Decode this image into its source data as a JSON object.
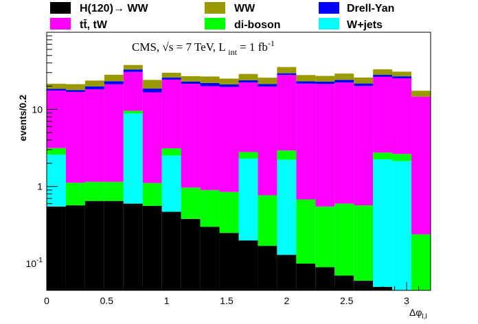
{
  "chart_data": {
    "type": "bar",
    "stacked": true,
    "y_scale": "log",
    "ylabel": "events/0.2",
    "xlabel": "Δφ",
    "xlabel_sub": "l,l",
    "xlim": [
      0,
      3.2
    ],
    "ylim": [
      0.045,
      100
    ],
    "x_ticks": [
      {
        "v": 0,
        "label": "0"
      },
      {
        "v": 0.5,
        "label": "0.5"
      },
      {
        "v": 1,
        "label": "1"
      },
      {
        "v": 1.5,
        "label": "1.5"
      },
      {
        "v": 2,
        "label": "2"
      },
      {
        "v": 2.5,
        "label": "2.5"
      },
      {
        "v": 3,
        "label": "3"
      }
    ],
    "y_ticks": [
      {
        "v": 0.1,
        "label": "10",
        "sup": "-1"
      },
      {
        "v": 1,
        "label": "1",
        "sup": ""
      },
      {
        "v": 10,
        "label": "10",
        "sup": ""
      }
    ],
    "annotation": {
      "pre": "CMS, ",
      "sqrt": "√s",
      "mid": " = 7 TeV, L ",
      "sub": "int",
      "post": " = 1 fb",
      "sup": "-1"
    },
    "bin_edges": [
      0,
      0.16,
      0.32,
      0.48,
      0.64,
      0.8,
      0.96,
      1.12,
      1.28,
      1.44,
      1.6,
      1.76,
      1.92,
      2.08,
      2.24,
      2.4,
      2.56,
      2.72,
      2.88,
      3.04,
      3.2
    ],
    "series": [
      {
        "name": "H(120)→ WW",
        "legend_label": "H(120)",
        "legend_arrow": "→",
        "legend_suffix": " WW",
        "color": "#000000",
        "values": [
          0.55,
          0.57,
          0.65,
          0.65,
          0.6,
          0.56,
          0.47,
          0.38,
          0.3,
          0.25,
          0.2,
          0.17,
          0.13,
          0.1,
          0.09,
          0.07,
          0.06,
          0.05,
          0.04,
          0.04
        ]
      },
      {
        "name": "W+jets",
        "color": "#00ffff",
        "values": [
          2.05,
          0,
          0,
          0,
          8.3,
          0,
          2.05,
          0,
          0,
          0,
          2.1,
          0,
          2.1,
          0,
          0,
          0,
          0,
          2.2,
          2.1,
          0
        ]
      },
      {
        "name": "di-boson",
        "color": "#00ff00",
        "values": [
          0.55,
          0.55,
          0.5,
          0.5,
          0.7,
          0.55,
          0.6,
          0.59,
          0.6,
          0.6,
          0.5,
          0.6,
          0.7,
          0.58,
          0.46,
          0.53,
          0.51,
          0.5,
          0.5,
          0.2
        ]
      },
      {
        "name": "tt̄, tW",
        "legend_label": "tt̄, tW",
        "color": "#ff00ff",
        "values": [
          14.4,
          15.7,
          17.1,
          20.0,
          21.0,
          15.5,
          21.2,
          20.5,
          19.1,
          18.7,
          19.5,
          19.0,
          25.0,
          20.9,
          20.8,
          21.7,
          19.5,
          23.7,
          22.7,
          14.4
        ]
      },
      {
        "name": "Drell-Yan",
        "color": "#0000ff",
        "values": [
          0.9,
          1.0,
          1.6,
          2.0,
          2.3,
          2.0,
          1.5,
          1.5,
          2.0,
          1.5,
          1.5,
          1.5,
          1.5,
          1.5,
          1.5,
          1.8,
          1.6,
          1.6,
          1.5,
          0
        ]
      },
      {
        "name": "WW",
        "color": "#999900",
        "values": [
          3.0,
          3.4,
          3.8,
          5.0,
          4.7,
          5.5,
          4.0,
          4.0,
          4.7,
          4.0,
          5.0,
          4.5,
          6.0,
          4.8,
          4.3,
          5.0,
          4.2,
          5.0,
          4.0,
          2.8
        ]
      }
    ],
    "legend_order": [
      0,
      5,
      4,
      3,
      2,
      1
    ]
  }
}
